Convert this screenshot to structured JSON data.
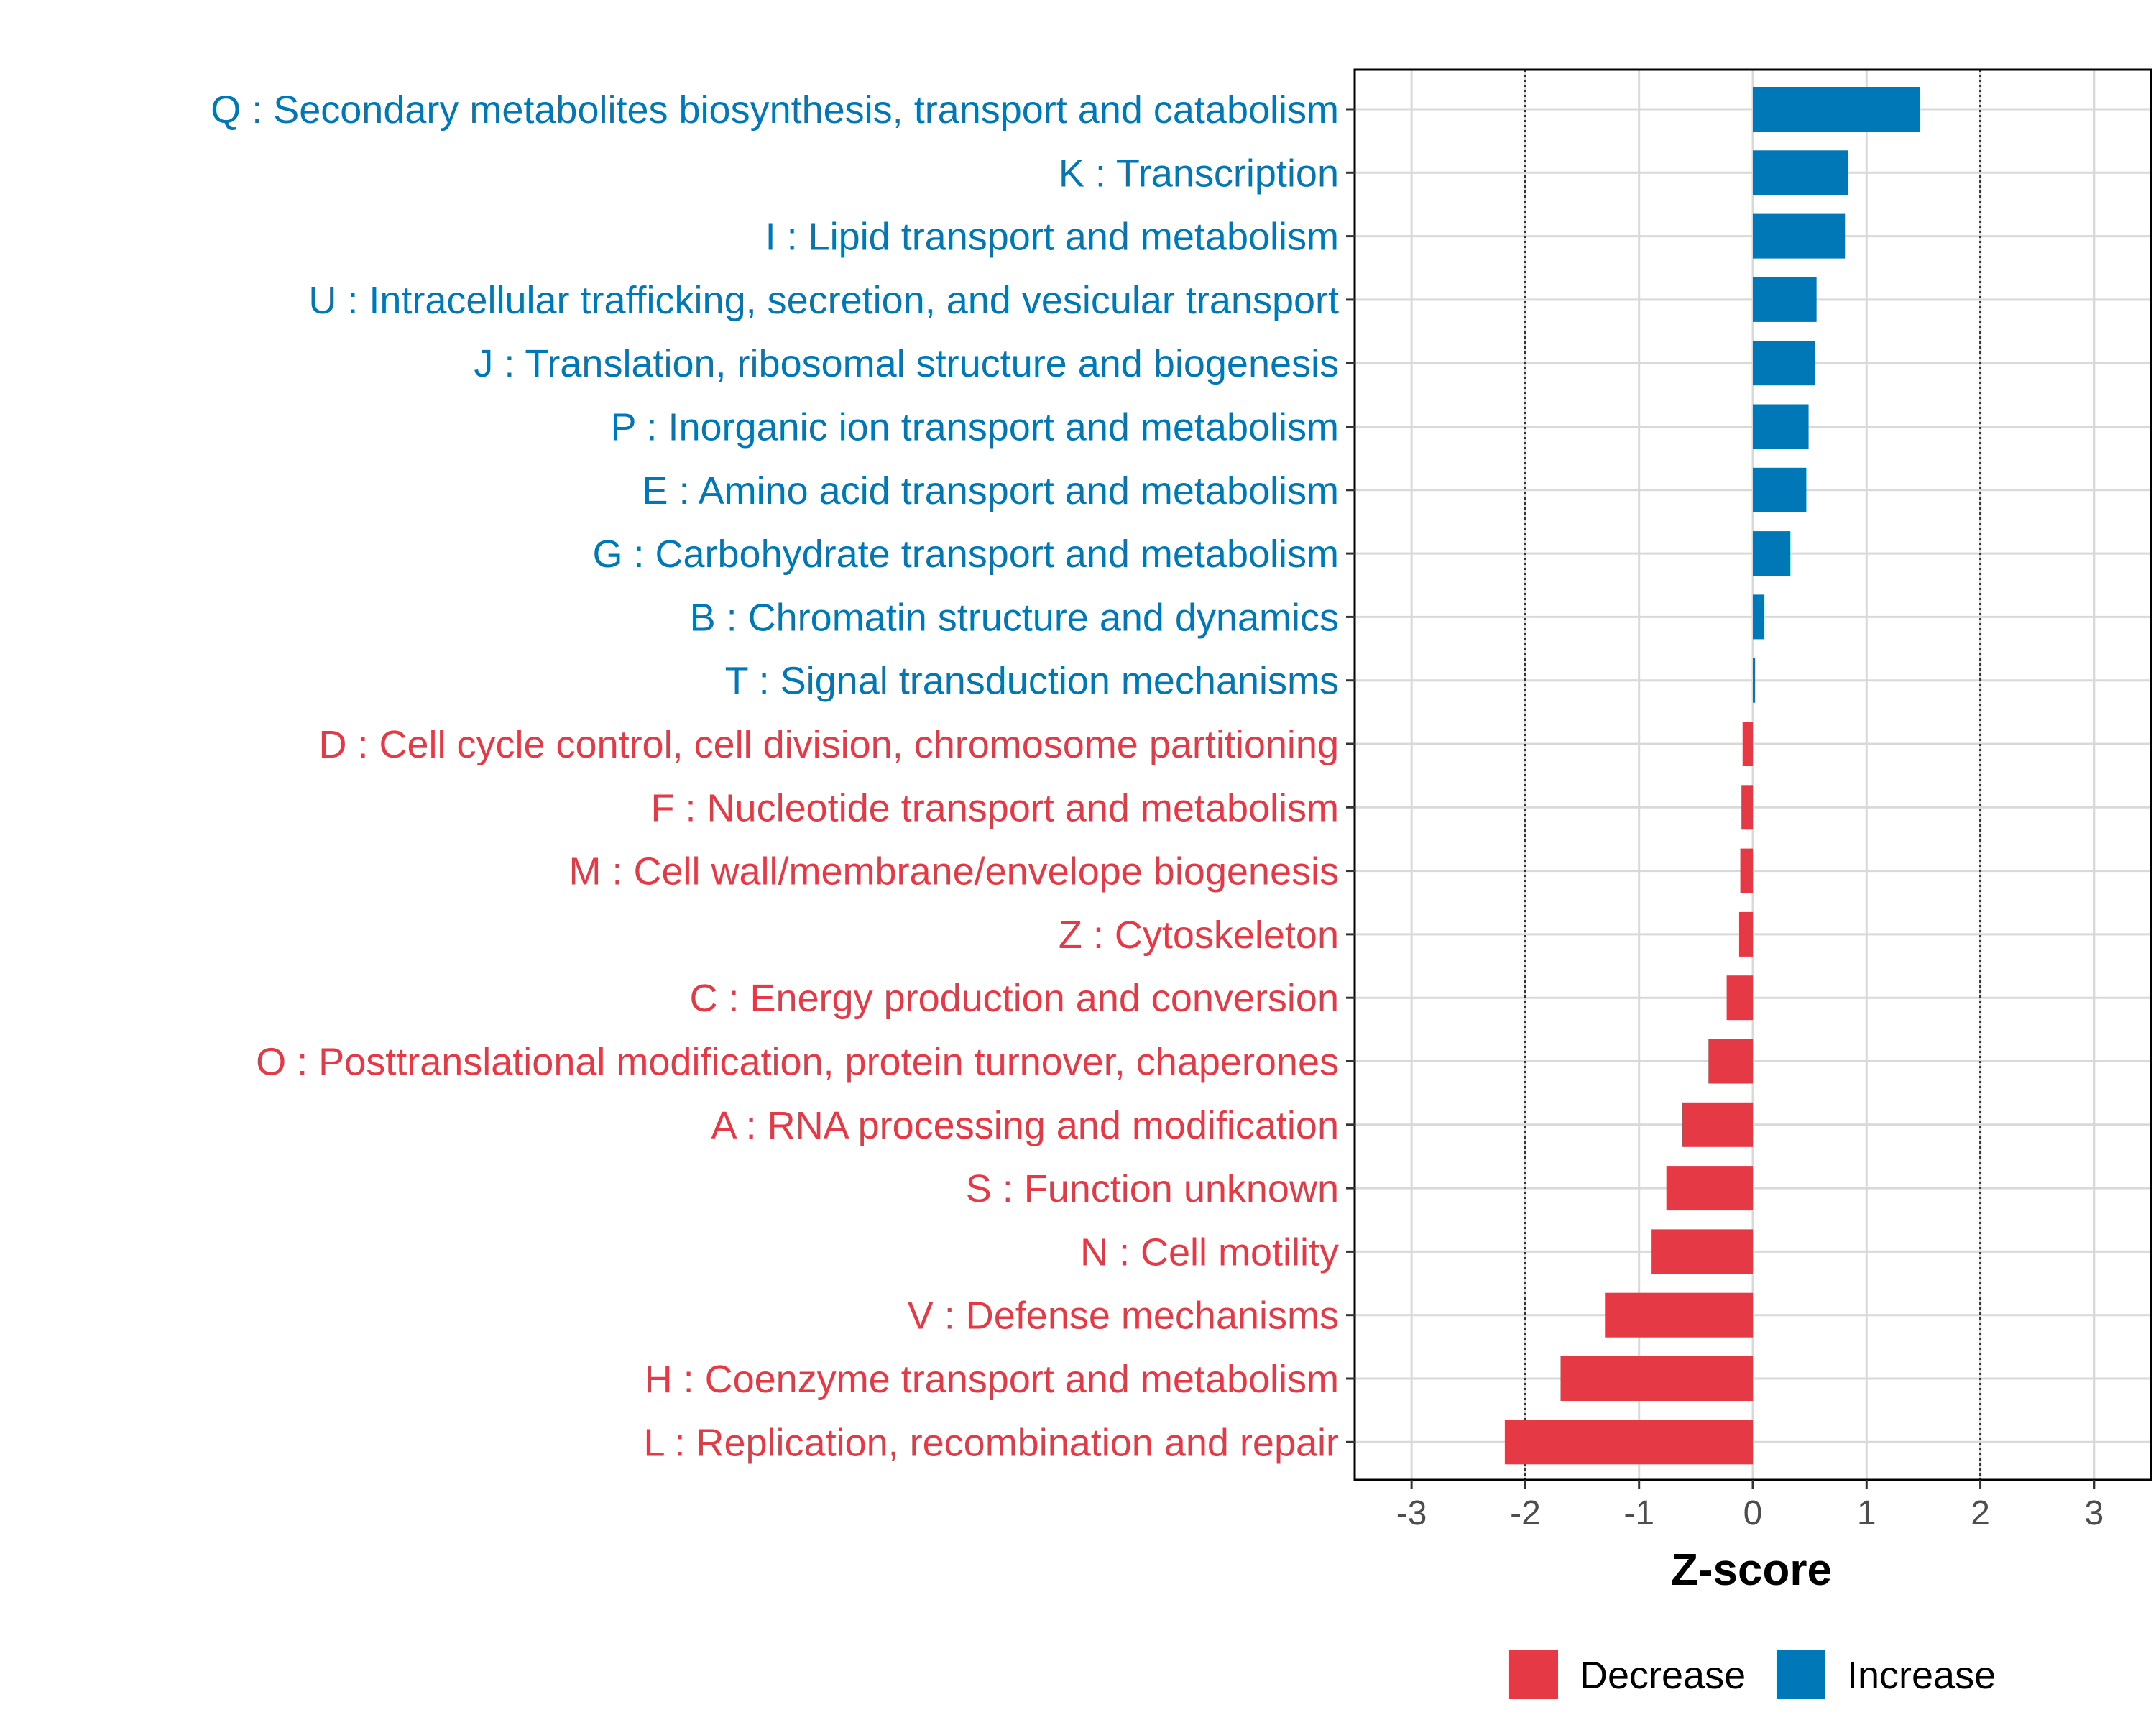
{
  "chart_data": {
    "type": "bar",
    "orientation": "horizontal",
    "xlabel": "Z-score",
    "xlim": [
      -3.5,
      3.5
    ],
    "xticks": [
      -3,
      -2,
      -1,
      0,
      1,
      2,
      3
    ],
    "xtick_labels": [
      "-3",
      "-2",
      "-1",
      "0",
      "1",
      "2",
      "3"
    ],
    "reference_lines": [
      -2,
      2
    ],
    "grid": true,
    "legend_position": "bottom",
    "colors": {
      "Decrease": "#e63946",
      "Increase": "#0077b6"
    },
    "legend": [
      "Decrease",
      "Increase"
    ],
    "categories": [
      {
        "label": "Q : Secondary metabolites biosynthesis, transport and catabolism",
        "value": 1.47,
        "direction": "Increase"
      },
      {
        "label": "K : Transcription",
        "value": 0.84,
        "direction": "Increase"
      },
      {
        "label": "I : Lipid transport and metabolism",
        "value": 0.81,
        "direction": "Increase"
      },
      {
        "label": "U : Intracellular trafficking, secretion, and vesicular transport",
        "value": 0.56,
        "direction": "Increase"
      },
      {
        "label": "J : Translation, ribosomal structure and biogenesis",
        "value": 0.55,
        "direction": "Increase"
      },
      {
        "label": "P : Inorganic ion transport and metabolism",
        "value": 0.49,
        "direction": "Increase"
      },
      {
        "label": "E : Amino acid transport and metabolism",
        "value": 0.47,
        "direction": "Increase"
      },
      {
        "label": "G : Carbohydrate transport and metabolism",
        "value": 0.33,
        "direction": "Increase"
      },
      {
        "label": "B : Chromatin structure and dynamics",
        "value": 0.1,
        "direction": "Increase"
      },
      {
        "label": "T : Signal transduction mechanisms",
        "value": 0.02,
        "direction": "Increase"
      },
      {
        "label": "D : Cell cycle control, cell division, chromosome partitioning",
        "value": -0.09,
        "direction": "Decrease"
      },
      {
        "label": "F : Nucleotide transport and metabolism",
        "value": -0.1,
        "direction": "Decrease"
      },
      {
        "label": "M : Cell wall/membrane/envelope biogenesis",
        "value": -0.11,
        "direction": "Decrease"
      },
      {
        "label": "Z : Cytoskeleton",
        "value": -0.12,
        "direction": "Decrease"
      },
      {
        "label": "C : Energy production and conversion",
        "value": -0.23,
        "direction": "Decrease"
      },
      {
        "label": "O : Posttranslational modification, protein turnover, chaperones",
        "value": -0.39,
        "direction": "Decrease"
      },
      {
        "label": "A : RNA processing and modification",
        "value": -0.62,
        "direction": "Decrease"
      },
      {
        "label": "S : Function unknown",
        "value": -0.76,
        "direction": "Decrease"
      },
      {
        "label": "N : Cell motility",
        "value": -0.89,
        "direction": "Decrease"
      },
      {
        "label": "V : Defense mechanisms",
        "value": -1.3,
        "direction": "Decrease"
      },
      {
        "label": "H : Coenzyme transport and metabolism",
        "value": -1.69,
        "direction": "Decrease"
      },
      {
        "label": "L : Replication, recombination and repair",
        "value": -2.18,
        "direction": "Decrease"
      }
    ]
  }
}
